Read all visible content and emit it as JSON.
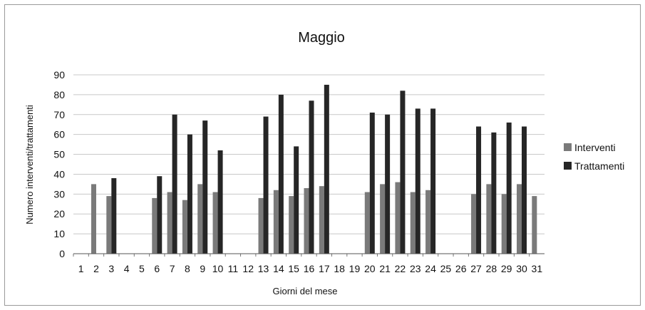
{
  "chart_data": {
    "type": "bar",
    "title": "Maggio",
    "xlabel": "Giorni del mese",
    "ylabel": "Numero interventi/trattamenti",
    "categories": [
      "1",
      "2",
      "3",
      "4",
      "5",
      "6",
      "7",
      "8",
      "9",
      "10",
      "11",
      "12",
      "13",
      "14",
      "15",
      "16",
      "17",
      "18",
      "19",
      "20",
      "21",
      "22",
      "23",
      "24",
      "25",
      "26",
      "27",
      "28",
      "29",
      "30",
      "31"
    ],
    "ylim": [
      0,
      90
    ],
    "yticks": [
      "0",
      "10",
      "20",
      "30",
      "40",
      "50",
      "60",
      "70",
      "80",
      "90"
    ],
    "grid": true,
    "legend_position": "right",
    "series": [
      {
        "name": "Interventi",
        "color": "#7a7a7a",
        "values": [
          null,
          35,
          29,
          null,
          null,
          28,
          31,
          27,
          35,
          31,
          null,
          null,
          28,
          32,
          29,
          33,
          34,
          null,
          null,
          31,
          35,
          36,
          31,
          32,
          null,
          null,
          30,
          35,
          30,
          35,
          29
        ]
      },
      {
        "name": "Trattamenti",
        "color": "#262626",
        "values": [
          null,
          null,
          38,
          null,
          null,
          39,
          70,
          60,
          67,
          52,
          null,
          null,
          69,
          80,
          54,
          77,
          85,
          null,
          null,
          71,
          70,
          82,
          73,
          73,
          null,
          null,
          64,
          61,
          66,
          64,
          null
        ]
      }
    ]
  }
}
